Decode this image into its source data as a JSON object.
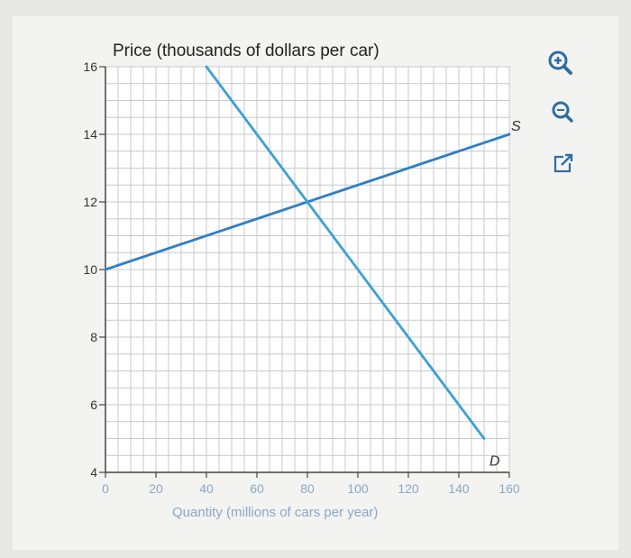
{
  "chart_data": {
    "type": "line",
    "title": "Price (thousands of dollars per car)",
    "xlabel": "Quantity (millions of cars per year)",
    "ylabel": "",
    "xlim": [
      0,
      160
    ],
    "ylim": [
      4,
      16
    ],
    "x_ticks": [
      "0",
      "20",
      "40",
      "60",
      "80",
      "100",
      "120",
      "140",
      "160"
    ],
    "x_tick_values": [
      0,
      20,
      40,
      60,
      80,
      100,
      120,
      140,
      160
    ],
    "y_ticks": [
      "4",
      "6",
      "8",
      "10",
      "12",
      "14",
      "16"
    ],
    "y_tick_values": [
      4,
      6,
      8,
      10,
      12,
      14,
      16
    ],
    "grid": true,
    "series": [
      {
        "name": "S",
        "color": "#2e7fc4",
        "points": [
          [
            0,
            10
          ],
          [
            160,
            14
          ]
        ]
      },
      {
        "name": "D",
        "color": "#3aa0d8",
        "points": [
          [
            40,
            16
          ],
          [
            150,
            5
          ]
        ]
      }
    ]
  },
  "toolbar": {
    "zoom_in_icon": "zoom-in-icon",
    "zoom_out_icon": "zoom-out-icon",
    "popout_icon": "external-link-icon"
  },
  "colors": {
    "accent": "#2e6da4",
    "grid": "#c9c9c9"
  }
}
